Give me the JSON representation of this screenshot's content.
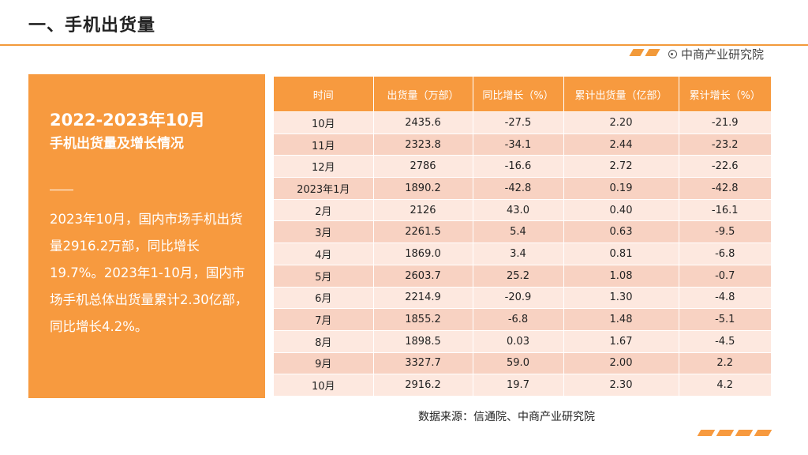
{
  "header": {
    "title": "一、手机出货量",
    "brand": "中商产业研究院"
  },
  "panel": {
    "heading1": "2022-2023年10月",
    "heading2": "手机出货量及增长情况",
    "body": "2023年10月，国内市场手机出货量2916.2万部，同比增长19.7%。2023年1-10月，国内市场手机总体出货量累计2.30亿部，同比增长4.2%。"
  },
  "table": {
    "headers": [
      "时间",
      "出货量（万部）",
      "同比增长（%）",
      "累计出货量（亿部）",
      "累计增长（%）"
    ],
    "rows": [
      [
        "10月",
        "2435.6",
        "-27.5",
        "2.20",
        "-21.9"
      ],
      [
        "11月",
        "2323.8",
        "-34.1",
        "2.44",
        "-23.2"
      ],
      [
        "12月",
        "2786",
        "-16.6",
        "2.72",
        "-22.6"
      ],
      [
        "2023年1月",
        "1890.2",
        "-42.8",
        "0.19",
        "-42.8"
      ],
      [
        "2月",
        "2126",
        "43.0",
        "0.40",
        "-16.1"
      ],
      [
        "3月",
        "2261.5",
        "5.4",
        "0.63",
        "-9.5"
      ],
      [
        "4月",
        "1869.0",
        "3.4",
        "0.81",
        "-6.8"
      ],
      [
        "5月",
        "2603.7",
        "25.2",
        "1.08",
        "-0.7"
      ],
      [
        "6月",
        "2214.9",
        "-20.9",
        "1.30",
        "-4.8"
      ],
      [
        "7月",
        "1855.2",
        "-6.8",
        "1.48",
        "-5.1"
      ],
      [
        "8月",
        "1898.5",
        "0.03",
        "1.67",
        "-4.5"
      ],
      [
        "9月",
        "3327.7",
        "59.0",
        "2.00",
        "2.2"
      ],
      [
        "10月",
        "2916.2",
        "19.7",
        "2.30",
        "4.2"
      ]
    ]
  },
  "footer": {
    "source": "数据来源：信通院、中商产业研究院"
  },
  "colors": {
    "accent": "#f79a3f",
    "row_light": "#fde8df",
    "row_dark": "#f8d2c2"
  }
}
